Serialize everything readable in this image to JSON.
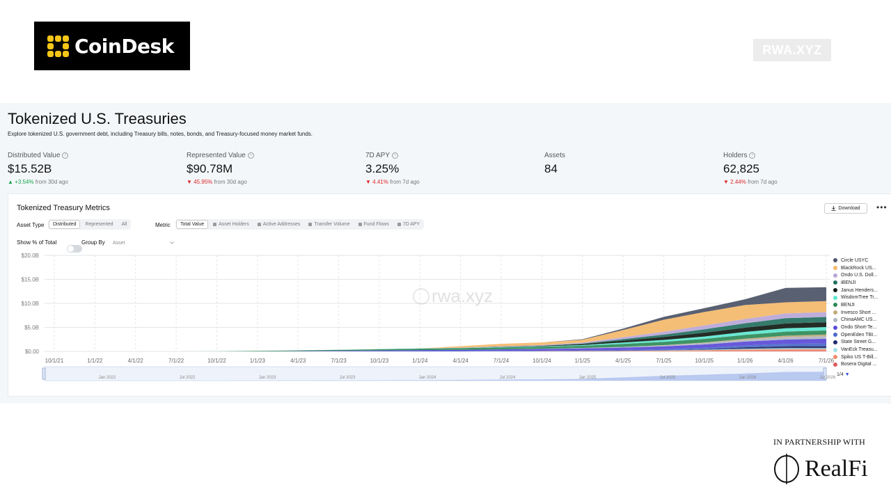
{
  "header": {
    "coindesk_logo_text": "CoinDesk",
    "rwa_badge": "RWA.XYZ"
  },
  "dashboard": {
    "title": "Tokenized U.S. Treasuries",
    "subtitle": "Explore tokenized U.S. government debt, including Treasury bills, notes, bonds, and Treasury-focused money market funds.",
    "stats": [
      {
        "label": "Distributed Value",
        "value": "$15.52B",
        "change": "▲ +3.54%",
        "change_dir": "up",
        "period": "from 30d ago",
        "has_info": true
      },
      {
        "label": "Represented Value",
        "value": "$90.78M",
        "change": "▼ 45.95%",
        "change_dir": "down",
        "period": "from 30d ago",
        "has_info": true
      },
      {
        "label": "7D APY",
        "value": "3.25%",
        "change": "▼ 4.41%",
        "change_dir": "down",
        "period": "from 7d ago",
        "has_info": true
      },
      {
        "label": "Assets",
        "value": "84",
        "change": "",
        "change_dir": "",
        "period": "",
        "has_info": false
      },
      {
        "label": "Holders",
        "value": "62,825",
        "change": "▼ 2.44%",
        "change_dir": "down",
        "period": "from 7d ago",
        "has_info": true
      }
    ]
  },
  "panel": {
    "title": "Tokenized Treasury Metrics",
    "download_label": "Download",
    "more_label": "•••",
    "asset_type_label": "Asset Type",
    "asset_type_options": [
      "Distributed",
      "Represented",
      "All"
    ],
    "metric_label": "Metric",
    "metric_options": [
      "Total Value",
      "Asset Holders",
      "Active Addresses",
      "Transfer Volume",
      "Fund Flows",
      "7D APY"
    ],
    "show_pct_label": "Show % of Total",
    "group_by_label": "Group By",
    "group_by_value": "Asset",
    "watermark": "rwa.xyz",
    "legend_pager": "1/4"
  },
  "chart_data": {
    "type": "area",
    "stacked": true,
    "y_ticks": [
      "$20.0B",
      "$15.0B",
      "$10.0B",
      "$5.0B",
      "$0.00"
    ],
    "ylim": [
      0,
      20
    ],
    "y_unit": "$B",
    "x_ticks": [
      "10/1/21",
      "1/1/22",
      "4/1/22",
      "7/1/22",
      "10/1/22",
      "1/1/23",
      "4/1/23",
      "7/1/23",
      "10/1/23",
      "1/1/24",
      "4/1/24",
      "7/1/24",
      "10/1/24",
      "1/1/25",
      "4/1/25",
      "7/1/25",
      "10/1/25",
      "1/1/26",
      "4/1/26",
      "7/1/26"
    ],
    "navigator_ticks": [
      "Jan 2022",
      "Jul 2022",
      "Jan 2023",
      "Jul 2023",
      "Jan 2024",
      "Jul 2024",
      "Jan 2025",
      "Jul 2025",
      "Jan 2026",
      "Jul 2026"
    ],
    "grid": true,
    "legend_position": "right",
    "x": [
      "10/1/21",
      "1/1/22",
      "4/1/22",
      "7/1/22",
      "10/1/22",
      "1/1/23",
      "4/1/23",
      "7/1/23",
      "10/1/23",
      "1/1/24",
      "4/1/24",
      "7/1/24",
      "10/1/24",
      "1/1/25",
      "4/1/25",
      "7/1/25",
      "10/1/25",
      "1/1/26",
      "4/1/26",
      "7/1/26"
    ],
    "series": [
      {
        "name": "Bosera Digital ...",
        "color": "#e05c5c",
        "values": [
          0,
          0,
          0,
          0,
          0,
          0,
          0,
          0,
          0,
          0,
          0,
          0,
          0,
          0,
          0,
          0,
          0.05,
          0.1,
          0.12,
          0.12
        ]
      },
      {
        "name": "Spiko US T-Bill...",
        "color": "#f08c6a",
        "values": [
          0,
          0,
          0,
          0,
          0,
          0,
          0,
          0,
          0,
          0,
          0,
          0.02,
          0.05,
          0.08,
          0.1,
          0.15,
          0.2,
          0.3,
          0.35,
          0.35
        ]
      },
      {
        "name": "VanEck Treasu...",
        "color": "#9fe0e6",
        "values": [
          0,
          0,
          0,
          0,
          0,
          0,
          0,
          0,
          0,
          0,
          0,
          0,
          0,
          0,
          0,
          0.05,
          0.1,
          0.15,
          0.2,
          0.2
        ]
      },
      {
        "name": "State Street G...",
        "color": "#1e2a6b",
        "values": [
          0,
          0,
          0,
          0,
          0,
          0,
          0,
          0,
          0,
          0,
          0,
          0,
          0,
          0,
          0,
          0,
          0.1,
          0.3,
          0.4,
          0.45
        ]
      },
      {
        "name": "OpenEden TBI...",
        "color": "#4a68c8",
        "values": [
          0,
          0,
          0,
          0,
          0,
          0,
          0,
          0.02,
          0.05,
          0.08,
          0.08,
          0.1,
          0.1,
          0.15,
          0.2,
          0.25,
          0.3,
          0.4,
          0.5,
          0.55
        ]
      },
      {
        "name": "Ondo Short-Te...",
        "color": "#5a4ad8",
        "values": [
          0,
          0,
          0,
          0,
          0,
          0,
          0.05,
          0.1,
          0.15,
          0.2,
          0.25,
          0.3,
          0.35,
          0.4,
          0.5,
          0.6,
          0.7,
          0.8,
          0.9,
          0.95
        ]
      },
      {
        "name": "ChinaAMC US...",
        "color": "#b0b6c2",
        "values": [
          0,
          0,
          0,
          0,
          0,
          0,
          0,
          0,
          0,
          0,
          0,
          0,
          0.05,
          0.1,
          0.15,
          0.2,
          0.3,
          0.4,
          0.5,
          0.55
        ]
      },
      {
        "name": "Invesco Short ...",
        "color": "#c2a87a",
        "values": [
          0,
          0,
          0,
          0,
          0,
          0,
          0,
          0,
          0,
          0,
          0,
          0,
          0,
          0,
          0,
          0.05,
          0.1,
          0.2,
          0.3,
          0.35
        ]
      },
      {
        "name": "BENJI",
        "color": "#2e8a58",
        "values": [
          0,
          0,
          0,
          0,
          0.02,
          0.1,
          0.15,
          0.2,
          0.25,
          0.3,
          0.35,
          0.4,
          0.42,
          0.45,
          0.6,
          0.7,
          0.75,
          0.8,
          0.85,
          0.85
        ]
      },
      {
        "name": "WisdomTree Tr...",
        "color": "#5ce6d0",
        "values": [
          0,
          0,
          0,
          0,
          0,
          0,
          0,
          0.01,
          0.02,
          0.03,
          0.05,
          0.1,
          0.1,
          0.15,
          0.3,
          0.4,
          0.5,
          0.6,
          0.7,
          0.7
        ]
      },
      {
        "name": "Janus Henders...",
        "color": "#111a14",
        "values": [
          0,
          0,
          0,
          0,
          0,
          0,
          0,
          0,
          0,
          0,
          0,
          0.05,
          0.1,
          0.2,
          0.4,
          0.6,
          0.8,
          0.9,
          1.0,
          1.0
        ]
      },
      {
        "name": "iBENJI",
        "color": "#24705f",
        "values": [
          0,
          0,
          0,
          0,
          0,
          0,
          0,
          0,
          0,
          0,
          0,
          0,
          0,
          0.1,
          0.3,
          0.5,
          0.7,
          0.9,
          1.1,
          1.1
        ]
      },
      {
        "name": "Ondo U.S. Doll...",
        "color": "#b9a6d8",
        "values": [
          0,
          0,
          0,
          0,
          0,
          0,
          0,
          0,
          0,
          0,
          0.05,
          0.1,
          0.15,
          0.2,
          0.4,
          0.6,
          0.8,
          0.9,
          1.0,
          1.0
        ]
      },
      {
        "name": "BlackRock US...",
        "color": "#f4b96a",
        "values": [
          0,
          0,
          0,
          0,
          0,
          0,
          0,
          0,
          0,
          0,
          0.3,
          0.5,
          0.55,
          0.6,
          1.5,
          2.5,
          2.8,
          2.9,
          2.3,
          2.3
        ]
      },
      {
        "name": "Circle USYC",
        "color": "#4b5366",
        "values": [
          0,
          0,
          0,
          0,
          0,
          0,
          0,
          0,
          0,
          0,
          0,
          0,
          0,
          0.1,
          0.3,
          0.6,
          0.8,
          1.2,
          3.0,
          2.9
        ]
      }
    ]
  }
}
